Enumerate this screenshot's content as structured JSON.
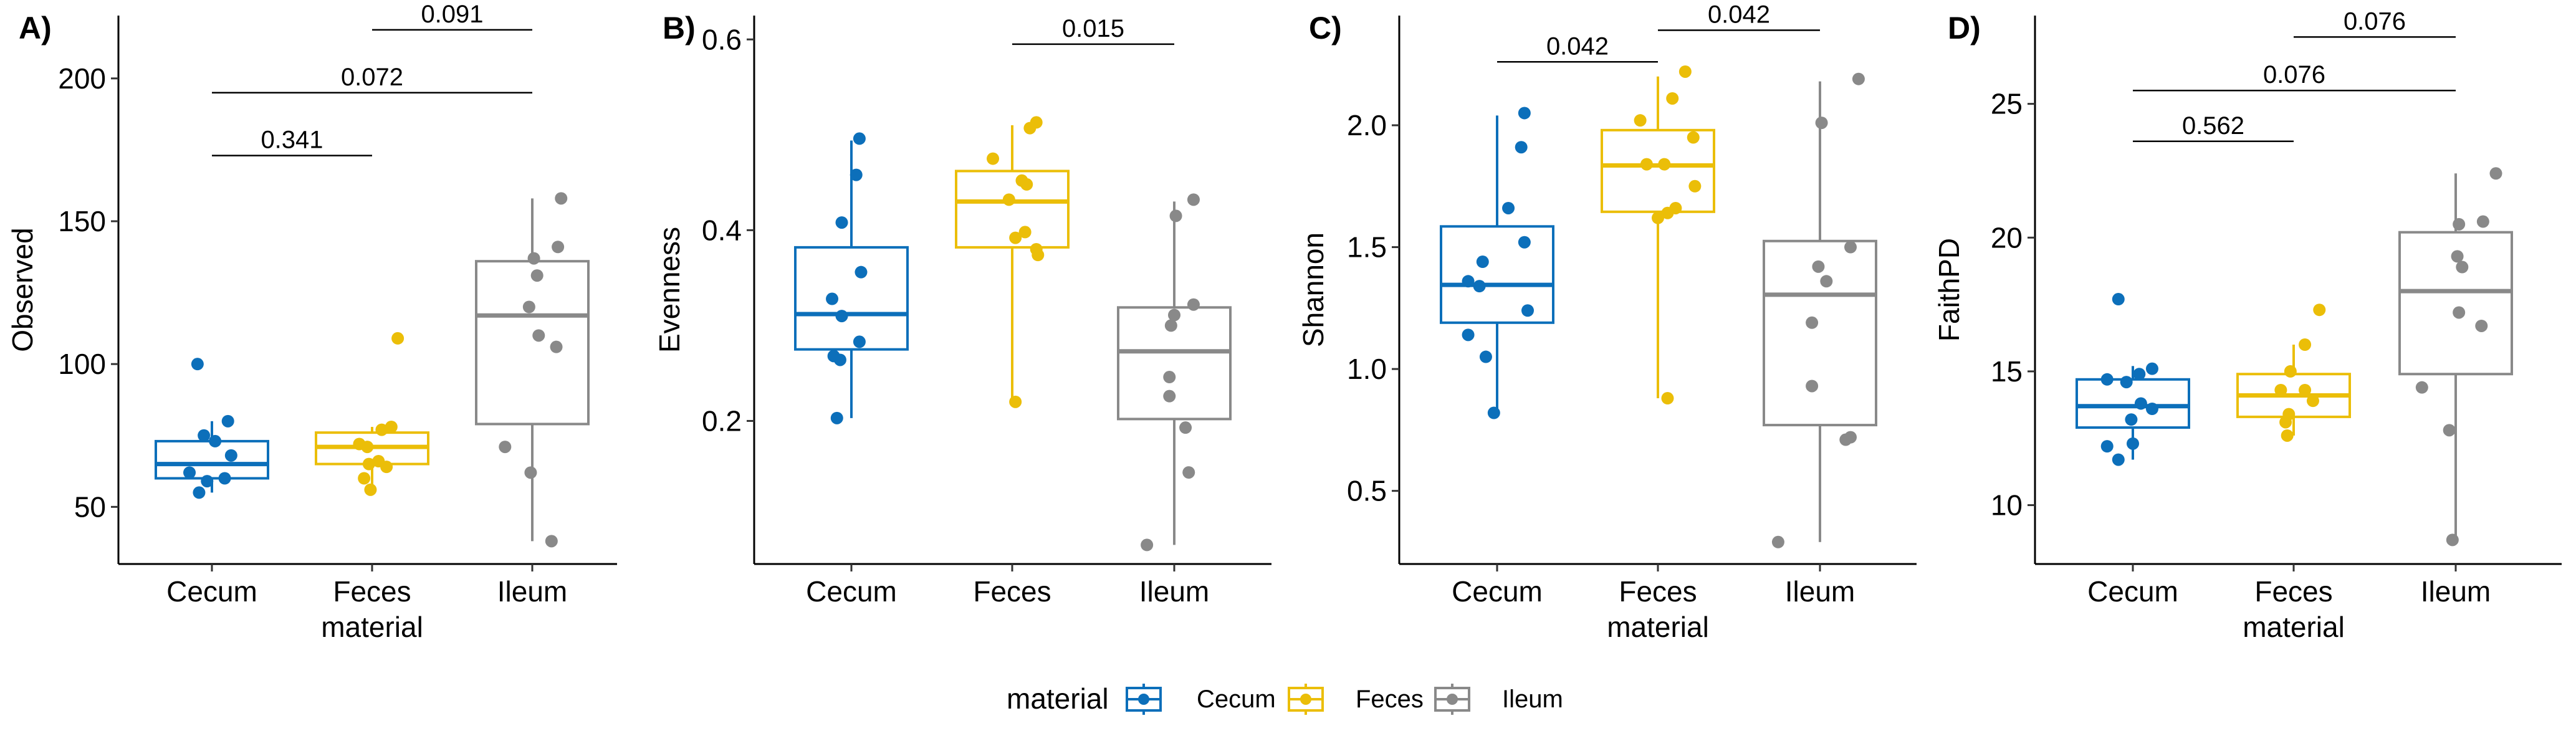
{
  "colors": {
    "Cecum": "#0C6FBA",
    "Feces": "#EBBE08",
    "Ileum": "#898989"
  },
  "legend": {
    "title": "material",
    "entries": [
      "Cecum",
      "Feces",
      "Ileum"
    ]
  },
  "chart_data": [
    {
      "type": "box",
      "panel": "A)",
      "ylabel": "Observed",
      "xlabel": "material",
      "categories": [
        "Cecum",
        "Feces",
        "Ileum"
      ],
      "ylim": [
        30,
        222
      ],
      "yticks": [
        50,
        100,
        150,
        200
      ],
      "boxes": [
        {
          "category": "Cecum",
          "q1": 60,
          "median": 65,
          "q3": 73,
          "whisker_low": 55,
          "whisker_high": 80
        },
        {
          "category": "Feces",
          "q1": 65,
          "median": 71,
          "q3": 76,
          "whisker_low": 55,
          "whisker_high": 78
        },
        {
          "category": "Ileum",
          "q1": 79,
          "median": 117,
          "q3": 136,
          "whisker_low": 38,
          "whisker_high": 158
        }
      ],
      "points": [
        {
          "category": "Cecum",
          "jitter": -0.09,
          "value": 100
        },
        {
          "category": "Cecum",
          "jitter": 0.1,
          "value": 80
        },
        {
          "category": "Cecum",
          "jitter": 0.02,
          "value": 73
        },
        {
          "category": "Cecum",
          "jitter": -0.05,
          "value": 75
        },
        {
          "category": "Cecum",
          "jitter": 0.12,
          "value": 68
        },
        {
          "category": "Cecum",
          "jitter": -0.14,
          "value": 62
        },
        {
          "category": "Cecum",
          "jitter": 0.08,
          "value": 60
        },
        {
          "category": "Cecum",
          "jitter": -0.03,
          "value": 59
        },
        {
          "category": "Cecum",
          "jitter": -0.08,
          "value": 55
        },
        {
          "category": "Feces",
          "jitter": 0.16,
          "value": 109
        },
        {
          "category": "Feces",
          "jitter": 0.12,
          "value": 78
        },
        {
          "category": "Feces",
          "jitter": 0.06,
          "value": 77
        },
        {
          "category": "Feces",
          "jitter": -0.08,
          "value": 72
        },
        {
          "category": "Feces",
          "jitter": -0.03,
          "value": 71
        },
        {
          "category": "Feces",
          "jitter": 0.04,
          "value": 66
        },
        {
          "category": "Feces",
          "jitter": -0.02,
          "value": 65
        },
        {
          "category": "Feces",
          "jitter": 0.09,
          "value": 64
        },
        {
          "category": "Feces",
          "jitter": -0.05,
          "value": 60
        },
        {
          "category": "Feces",
          "jitter": -0.01,
          "value": 56
        },
        {
          "category": "Ileum",
          "jitter": 0.18,
          "value": 158
        },
        {
          "category": "Ileum",
          "jitter": 0.16,
          "value": 141
        },
        {
          "category": "Ileum",
          "jitter": 0.01,
          "value": 137
        },
        {
          "category": "Ileum",
          "jitter": 0.03,
          "value": 131
        },
        {
          "category": "Ileum",
          "jitter": -0.02,
          "value": 120
        },
        {
          "category": "Ileum",
          "jitter": 0.04,
          "value": 110
        },
        {
          "category": "Ileum",
          "jitter": 0.15,
          "value": 106
        },
        {
          "category": "Ileum",
          "jitter": -0.17,
          "value": 71
        },
        {
          "category": "Ileum",
          "jitter": -0.01,
          "value": 62
        },
        {
          "category": "Ileum",
          "jitter": 0.12,
          "value": 38
        }
      ],
      "comparisons": [
        {
          "from": "Cecum",
          "to": "Feces",
          "y": 173,
          "p": "0.341"
        },
        {
          "from": "Cecum",
          "to": "Ileum",
          "y": 195,
          "p": "0.072"
        },
        {
          "from": "Feces",
          "to": "Ileum",
          "y": 217,
          "p": "0.091"
        }
      ]
    },
    {
      "type": "box",
      "panel": "B)",
      "ylabel": "Evenness",
      "xlabel": "",
      "categories": [
        "Cecum",
        "Feces",
        "Ileum"
      ],
      "ylim": [
        0.05,
        0.625
      ],
      "yticks": [
        0.2,
        0.4,
        0.6
      ],
      "ytick_labels": [
        "0.2",
        "0.4",
        "0.6"
      ],
      "boxes": [
        {
          "category": "Cecum",
          "q1": 0.275,
          "median": 0.312,
          "q3": 0.382,
          "whisker_low": 0.203,
          "whisker_high": 0.494
        },
        {
          "category": "Feces",
          "q1": 0.382,
          "median": 0.43,
          "q3": 0.462,
          "whisker_low": 0.22,
          "whisker_high": 0.51
        },
        {
          "category": "Ileum",
          "q1": 0.202,
          "median": 0.273,
          "q3": 0.319,
          "whisker_low": 0.07,
          "whisker_high": 0.43
        }
      ],
      "points": [
        {
          "category": "Cecum",
          "jitter": 0.05,
          "value": 0.496
        },
        {
          "category": "Cecum",
          "jitter": 0.03,
          "value": 0.458
        },
        {
          "category": "Cecum",
          "jitter": -0.06,
          "value": 0.408
        },
        {
          "category": "Cecum",
          "jitter": 0.06,
          "value": 0.356
        },
        {
          "category": "Cecum",
          "jitter": -0.12,
          "value": 0.328
        },
        {
          "category": "Cecum",
          "jitter": -0.06,
          "value": 0.31
        },
        {
          "category": "Cecum",
          "jitter": 0.05,
          "value": 0.283
        },
        {
          "category": "Cecum",
          "jitter": -0.11,
          "value": 0.268
        },
        {
          "category": "Cecum",
          "jitter": -0.07,
          "value": 0.264
        },
        {
          "category": "Cecum",
          "jitter": -0.09,
          "value": 0.203
        },
        {
          "category": "Feces",
          "jitter": 0.15,
          "value": 0.513
        },
        {
          "category": "Feces",
          "jitter": 0.11,
          "value": 0.507
        },
        {
          "category": "Feces",
          "jitter": -0.12,
          "value": 0.475
        },
        {
          "category": "Feces",
          "jitter": 0.06,
          "value": 0.452
        },
        {
          "category": "Feces",
          "jitter": 0.09,
          "value": 0.448
        },
        {
          "category": "Feces",
          "jitter": -0.02,
          "value": 0.432
        },
        {
          "category": "Feces",
          "jitter": 0.08,
          "value": 0.398
        },
        {
          "category": "Feces",
          "jitter": 0.02,
          "value": 0.392
        },
        {
          "category": "Feces",
          "jitter": 0.15,
          "value": 0.38
        },
        {
          "category": "Feces",
          "jitter": 0.16,
          "value": 0.374
        },
        {
          "category": "Feces",
          "jitter": 0.02,
          "value": 0.22
        },
        {
          "category": "Ileum",
          "jitter": 0.12,
          "value": 0.432
        },
        {
          "category": "Ileum",
          "jitter": 0.01,
          "value": 0.415
        },
        {
          "category": "Ileum",
          "jitter": 0.12,
          "value": 0.322
        },
        {
          "category": "Ileum",
          "jitter": 0.0,
          "value": 0.311
        },
        {
          "category": "Ileum",
          "jitter": -0.02,
          "value": 0.3
        },
        {
          "category": "Ileum",
          "jitter": -0.03,
          "value": 0.246
        },
        {
          "category": "Ileum",
          "jitter": -0.03,
          "value": 0.226
        },
        {
          "category": "Ileum",
          "jitter": 0.07,
          "value": 0.193
        },
        {
          "category": "Ileum",
          "jitter": 0.09,
          "value": 0.146
        },
        {
          "category": "Ileum",
          "jitter": -0.17,
          "value": 0.07
        }
      ],
      "comparisons": [
        {
          "from": "Feces",
          "to": "Ileum",
          "y": 0.595,
          "p": "0.015"
        }
      ]
    },
    {
      "type": "box",
      "panel": "C)",
      "ylabel": "Shannon",
      "xlabel": "material",
      "categories": [
        "Cecum",
        "Feces",
        "Ileum"
      ],
      "ylim": [
        0.2,
        2.45
      ],
      "yticks": [
        0.5,
        1.0,
        1.5,
        2.0
      ],
      "ytick_labels": [
        "0.5",
        "1.0",
        "1.5",
        "2.0"
      ],
      "boxes": [
        {
          "category": "Cecum",
          "q1": 1.19,
          "median": 1.345,
          "q3": 1.585,
          "whisker_low": 0.82,
          "whisker_high": 2.04
        },
        {
          "category": "Feces",
          "q1": 1.645,
          "median": 1.835,
          "q3": 1.98,
          "whisker_low": 0.88,
          "whisker_high": 2.2
        },
        {
          "category": "Ileum",
          "q1": 0.77,
          "median": 1.305,
          "q3": 1.525,
          "whisker_low": 0.29,
          "whisker_high": 2.18
        }
      ],
      "points": [
        {
          "category": "Cecum",
          "jitter": 0.17,
          "value": 2.05
        },
        {
          "category": "Cecum",
          "jitter": 0.15,
          "value": 1.91
        },
        {
          "category": "Cecum",
          "jitter": 0.07,
          "value": 1.66
        },
        {
          "category": "Cecum",
          "jitter": 0.17,
          "value": 1.52
        },
        {
          "category": "Cecum",
          "jitter": -0.09,
          "value": 1.44
        },
        {
          "category": "Cecum",
          "jitter": -0.18,
          "value": 1.36
        },
        {
          "category": "Cecum",
          "jitter": -0.11,
          "value": 1.34
        },
        {
          "category": "Cecum",
          "jitter": 0.19,
          "value": 1.24
        },
        {
          "category": "Cecum",
          "jitter": -0.18,
          "value": 1.14
        },
        {
          "category": "Cecum",
          "jitter": -0.07,
          "value": 1.05
        },
        {
          "category": "Cecum",
          "jitter": -0.02,
          "value": 0.82
        },
        {
          "category": "Feces",
          "jitter": 0.17,
          "value": 2.22
        },
        {
          "category": "Feces",
          "jitter": 0.09,
          "value": 2.11
        },
        {
          "category": "Feces",
          "jitter": -0.11,
          "value": 2.02
        },
        {
          "category": "Feces",
          "jitter": 0.22,
          "value": 1.95
        },
        {
          "category": "Feces",
          "jitter": -0.07,
          "value": 1.84
        },
        {
          "category": "Feces",
          "jitter": 0.04,
          "value": 1.84
        },
        {
          "category": "Feces",
          "jitter": 0.23,
          "value": 1.75
        },
        {
          "category": "Feces",
          "jitter": 0.11,
          "value": 1.66
        },
        {
          "category": "Feces",
          "jitter": 0.06,
          "value": 1.64
        },
        {
          "category": "Feces",
          "jitter": 0.0,
          "value": 1.62
        },
        {
          "category": "Feces",
          "jitter": 0.06,
          "value": 0.88
        },
        {
          "category": "Ileum",
          "jitter": 0.24,
          "value": 2.19
        },
        {
          "category": "Ileum",
          "jitter": 0.01,
          "value": 2.01
        },
        {
          "category": "Ileum",
          "jitter": 0.19,
          "value": 1.5
        },
        {
          "category": "Ileum",
          "jitter": -0.01,
          "value": 1.42
        },
        {
          "category": "Ileum",
          "jitter": 0.04,
          "value": 1.36
        },
        {
          "category": "Ileum",
          "jitter": -0.05,
          "value": 1.19
        },
        {
          "category": "Ileum",
          "jitter": -0.05,
          "value": 0.93
        },
        {
          "category": "Ileum",
          "jitter": 0.19,
          "value": 0.72
        },
        {
          "category": "Ileum",
          "jitter": 0.16,
          "value": 0.71
        },
        {
          "category": "Ileum",
          "jitter": -0.26,
          "value": 0.29
        }
      ],
      "comparisons": [
        {
          "from": "Cecum",
          "to": "Feces",
          "y": 2.26,
          "p": "0.042"
        },
        {
          "from": "Feces",
          "to": "Ileum",
          "y": 2.39,
          "p": "0.042"
        }
      ]
    },
    {
      "type": "box",
      "panel": "D)",
      "ylabel": "FaithPD",
      "xlabel": "material",
      "categories": [
        "Cecum",
        "Feces",
        "Ileum"
      ],
      "ylim": [
        7.8,
        28.3
      ],
      "yticks": [
        10,
        15,
        20,
        25
      ],
      "boxes": [
        {
          "category": "Cecum",
          "q1": 12.9,
          "median": 13.7,
          "q3": 14.7,
          "whisker_low": 11.7,
          "whisker_high": 15.2
        },
        {
          "category": "Feces",
          "q1": 13.3,
          "median": 14.1,
          "q3": 14.9,
          "whisker_low": 12.6,
          "whisker_high": 16.0
        },
        {
          "category": "Ileum",
          "q1": 14.9,
          "median": 18.0,
          "q3": 20.2,
          "whisker_low": 8.7,
          "whisker_high": 22.4
        }
      ],
      "points": [
        {
          "category": "Cecum",
          "jitter": -0.09,
          "value": 17.7
        },
        {
          "category": "Cecum",
          "jitter": 0.12,
          "value": 15.1
        },
        {
          "category": "Cecum",
          "jitter": 0.04,
          "value": 14.9
        },
        {
          "category": "Cecum",
          "jitter": -0.16,
          "value": 14.7
        },
        {
          "category": "Cecum",
          "jitter": -0.04,
          "value": 14.6
        },
        {
          "category": "Cecum",
          "jitter": 0.05,
          "value": 13.8
        },
        {
          "category": "Cecum",
          "jitter": 0.12,
          "value": 13.6
        },
        {
          "category": "Cecum",
          "jitter": -0.01,
          "value": 13.2
        },
        {
          "category": "Cecum",
          "jitter": -0.16,
          "value": 12.2
        },
        {
          "category": "Cecum",
          "jitter": 0.0,
          "value": 12.3
        },
        {
          "category": "Cecum",
          "jitter": -0.09,
          "value": 11.7
        },
        {
          "category": "Feces",
          "jitter": 0.16,
          "value": 17.3
        },
        {
          "category": "Feces",
          "jitter": 0.07,
          "value": 16.0
        },
        {
          "category": "Feces",
          "jitter": -0.02,
          "value": 15.0
        },
        {
          "category": "Feces",
          "jitter": -0.08,
          "value": 14.3
        },
        {
          "category": "Feces",
          "jitter": 0.07,
          "value": 14.3
        },
        {
          "category": "Feces",
          "jitter": 0.12,
          "value": 13.9
        },
        {
          "category": "Feces",
          "jitter": -0.03,
          "value": 13.4
        },
        {
          "category": "Feces",
          "jitter": -0.05,
          "value": 13.1
        },
        {
          "category": "Feces",
          "jitter": -0.04,
          "value": 12.6
        },
        {
          "category": "Ileum",
          "jitter": 0.25,
          "value": 22.4
        },
        {
          "category": "Ileum",
          "jitter": 0.02,
          "value": 20.5
        },
        {
          "category": "Ileum",
          "jitter": 0.17,
          "value": 20.6
        },
        {
          "category": "Ileum",
          "jitter": 0.01,
          "value": 19.3
        },
        {
          "category": "Ileum",
          "jitter": 0.04,
          "value": 18.9
        },
        {
          "category": "Ileum",
          "jitter": 0.02,
          "value": 17.2
        },
        {
          "category": "Ileum",
          "jitter": 0.16,
          "value": 16.7
        },
        {
          "category": "Ileum",
          "jitter": -0.21,
          "value": 14.4
        },
        {
          "category": "Ileum",
          "jitter": -0.04,
          "value": 12.8
        },
        {
          "category": "Ileum",
          "jitter": -0.02,
          "value": 8.7
        }
      ],
      "comparisons": [
        {
          "from": "Cecum",
          "to": "Feces",
          "y": 23.6,
          "p": "0.562"
        },
        {
          "from": "Cecum",
          "to": "Ileum",
          "y": 25.5,
          "p": "0.076"
        },
        {
          "from": "Feces",
          "to": "Ileum",
          "y": 27.5,
          "p": "0.076"
        }
      ]
    }
  ]
}
